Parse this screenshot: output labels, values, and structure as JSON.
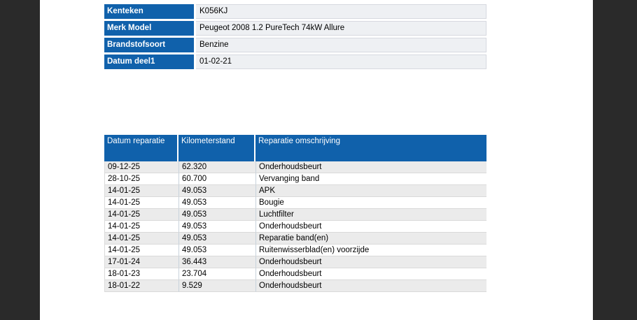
{
  "colors": {
    "canvas_bg": "#2a2a2a",
    "paper_bg": "#ffffff",
    "header_blue": "#1061ab",
    "header_text": "#ffffff",
    "value_cell_bg": "#eef0f3",
    "value_cell_border": "#d7d9e0",
    "row_alt_bg": "#ebebeb",
    "row_bg": "#ffffff",
    "row_border": "#dadada",
    "col_border": "#c8d2dc",
    "text_color": "#000000"
  },
  "vehicle_info": {
    "rows": [
      {
        "label": "Kenteken",
        "value": "K056KJ"
      },
      {
        "label": "Merk Model",
        "value": "Peugeot 2008 1.2 PureTech 74kW Allure"
      },
      {
        "label": "Brandstofsoort",
        "value": "Benzine"
      },
      {
        "label": "Datum deel1",
        "value": "01-02-21"
      }
    ]
  },
  "repair_table": {
    "columns": [
      "Datum reparatie",
      "Kilometerstand",
      "Reparatie omschrijving"
    ],
    "rows": [
      [
        "09-12-25",
        "62.320",
        "Onderhoudsbeurt"
      ],
      [
        "28-10-25",
        "60.700",
        "Vervanging band"
      ],
      [
        "14-01-25",
        "49.053",
        "APK"
      ],
      [
        "14-01-25",
        "49.053",
        "Bougie"
      ],
      [
        "14-01-25",
        "49.053",
        "Luchtfilter"
      ],
      [
        "14-01-25",
        "49.053",
        "Onderhoudsbeurt"
      ],
      [
        "14-01-25",
        "49.053",
        "Reparatie band(en)"
      ],
      [
        "14-01-25",
        "49.053",
        "Ruitenwisserblad(en) voorzijde"
      ],
      [
        "17-01-24",
        "36.443",
        "Onderhoudsbeurt"
      ],
      [
        "18-01-23",
        "23.704",
        "Onderhoudsbeurt"
      ],
      [
        "18-01-22",
        "9.529",
        "Onderhoudsbeurt"
      ]
    ]
  }
}
